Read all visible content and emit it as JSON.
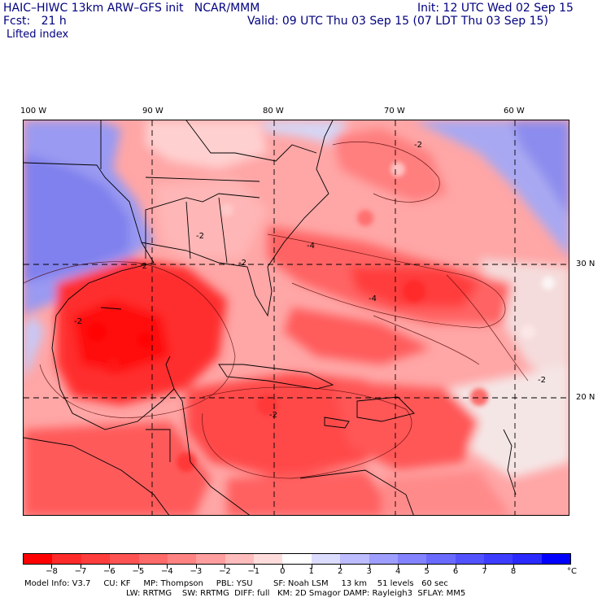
{
  "header": {
    "title": "HAIC–HIWC 13km ARW–GFS init   NCAR/MMM",
    "fcst": "Fcst:   21 h",
    "field": "Lifted index",
    "init": "Init: 12 UTC Wed 02 Sep 15",
    "valid": "Valid: 09 UTC Thu 03 Sep 15 (07 LDT Thu 03 Sep 15)"
  },
  "axes": {
    "lon_labels": [
      "100 W",
      "90 W",
      "80 W",
      "70 W",
      "60 W"
    ],
    "lat_labels": [
      "30 N",
      "20 N"
    ]
  },
  "colorbar": {
    "ticks": [
      "−8",
      "−7",
      "−6",
      "−5",
      "−4",
      "−3",
      "−2",
      "−1",
      "0",
      "1",
      "2",
      "3",
      "4",
      "5",
      "6",
      "7",
      "8"
    ],
    "unit": "°C",
    "colors": [
      "#ff0000",
      "#ff2a2a",
      "#ff3d3d",
      "#ff5252",
      "#ff6a6a",
      "#ff8383",
      "#ff9e9e",
      "#ffbcbc",
      "#ffdcdc",
      "#ffffff",
      "#dcdcff",
      "#bcbcff",
      "#9e9eff",
      "#8383ff",
      "#6a6aff",
      "#5252ff",
      "#3d3dff",
      "#2a2aff",
      "#0000ff"
    ]
  },
  "model_info": {
    "line1": "Model Info: V3.7     CU: KF     MP: Thompson     PBL: YSU        SF: Noah LSM     13 km    51 levels   60 sec",
    "line2": "LW: RRTMG    SW: RRTMG  DIFF: full   KM: 2D Smagor DAMP: Rayleigh3  SFLAY: MM5"
  },
  "contour_labels": [
    "-2",
    "-4",
    "-2",
    "-2",
    "-2",
    "-4",
    "-2",
    "-2",
    "-2"
  ]
}
